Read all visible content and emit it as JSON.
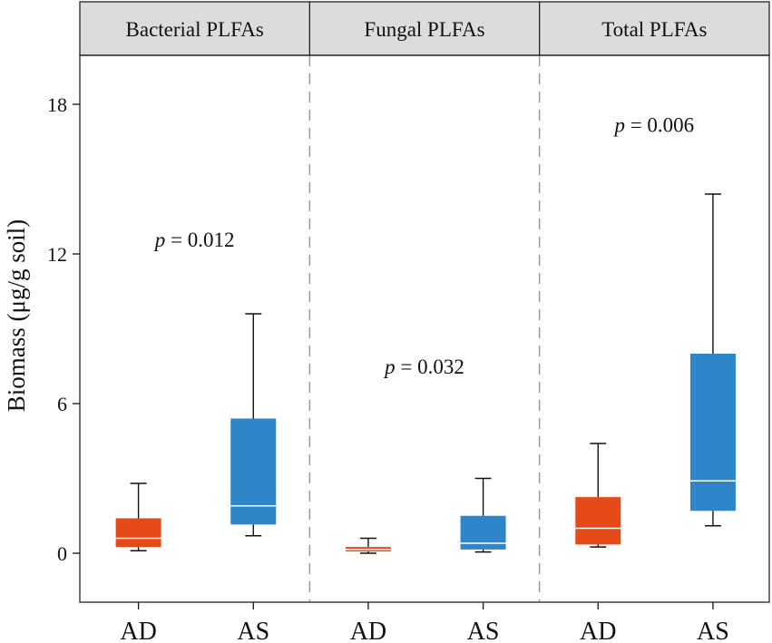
{
  "chart_data": {
    "type": "boxplot",
    "ylabel": "Biomass (μg/g soil)",
    "y_ticks": [
      0,
      6,
      12,
      18
    ],
    "ylim": [
      -2,
      20.3
    ],
    "categories": [
      "AD",
      "AS"
    ],
    "colors": {
      "AD": "#E64A19",
      "AS": "#2E86C8",
      "median": "#ffffff",
      "strip_bg": "#DCDCDC"
    },
    "panels": [
      {
        "title": "Bacterial PLFAs",
        "p_prefix": "p",
        "p_rest": " = 0.012",
        "p_y": 12.3,
        "boxes": [
          {
            "group": "AD",
            "min": 0.1,
            "q1": 0.25,
            "median": 0.6,
            "q3": 1.4,
            "max": 2.8
          },
          {
            "group": "AS",
            "min": 0.7,
            "q1": 1.15,
            "median": 1.9,
            "q3": 5.4,
            "max": 9.6
          }
        ]
      },
      {
        "title": "Fungal PLFAs",
        "p_prefix": "p",
        "p_rest": " = 0.032",
        "p_y": 7.2,
        "boxes": [
          {
            "group": "AD",
            "min": 0.0,
            "q1": 0.07,
            "median": 0.15,
            "q3": 0.25,
            "max": 0.6
          },
          {
            "group": "AS",
            "min": 0.05,
            "q1": 0.15,
            "median": 0.4,
            "q3": 1.5,
            "max": 3.0
          }
        ]
      },
      {
        "title": "Total PLFAs",
        "p_prefix": "p",
        "p_rest": " = 0.006",
        "p_y": 16.9,
        "boxes": [
          {
            "group": "AD",
            "min": 0.25,
            "q1": 0.35,
            "median": 1.0,
            "q3": 2.25,
            "max": 4.4
          },
          {
            "group": "AS",
            "min": 1.1,
            "q1": 1.7,
            "median": 2.9,
            "q3": 8.0,
            "max": 14.4
          }
        ]
      }
    ]
  }
}
